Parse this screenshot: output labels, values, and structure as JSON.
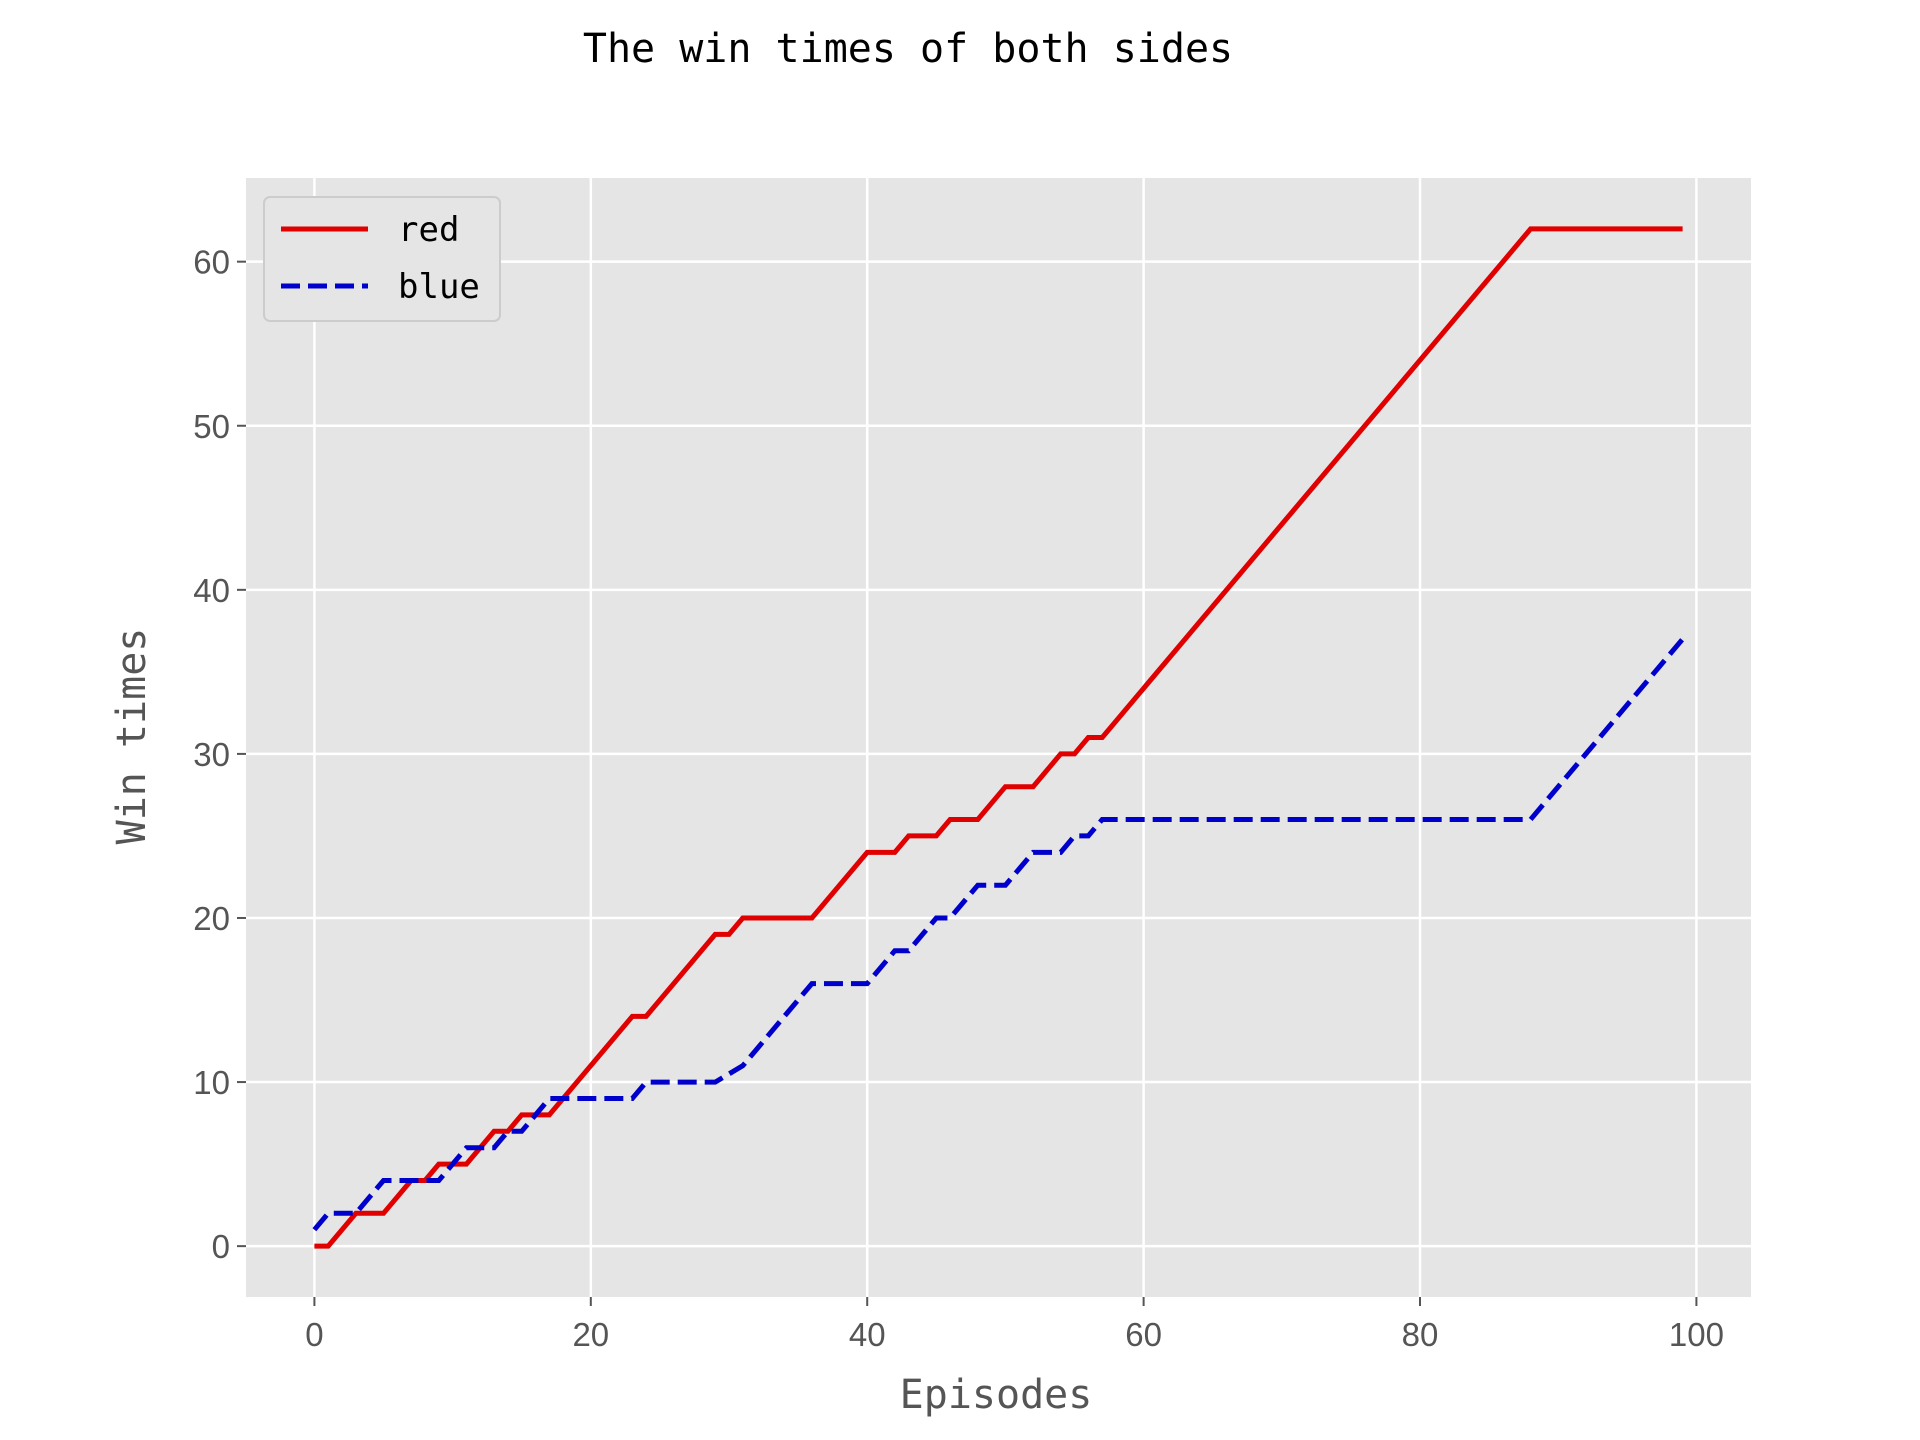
{
  "chart_data": {
    "type": "line",
    "title": "The win times of both sides",
    "xlabel": "Episodes",
    "ylabel": "Win times",
    "xlim": [
      -4.95,
      103.95
    ],
    "ylim": [
      -3.1,
      65.1
    ],
    "xticks": [
      0,
      20,
      40,
      60,
      80,
      100
    ],
    "yticks": [
      0,
      10,
      20,
      30,
      40,
      50,
      60
    ],
    "grid": true,
    "legend_position": "top-left",
    "background": "#e5e5e5",
    "series": [
      {
        "name": "red",
        "color": "#e00000",
        "style": "solid",
        "points": [
          [
            0,
            0
          ],
          [
            1,
            0
          ],
          [
            3,
            2
          ],
          [
            5,
            2
          ],
          [
            7,
            4
          ],
          [
            8,
            4
          ],
          [
            9,
            5
          ],
          [
            11,
            5
          ],
          [
            13,
            7
          ],
          [
            14,
            7
          ],
          [
            15,
            8
          ],
          [
            17,
            8
          ],
          [
            23,
            14
          ],
          [
            24,
            14
          ],
          [
            29,
            19
          ],
          [
            30,
            19
          ],
          [
            31,
            20
          ],
          [
            36,
            20
          ],
          [
            40,
            24
          ],
          [
            42,
            24
          ],
          [
            43,
            25
          ],
          [
            45,
            25
          ],
          [
            46,
            26
          ],
          [
            48,
            26
          ],
          [
            50,
            28
          ],
          [
            52,
            28
          ],
          [
            54,
            30
          ],
          [
            55,
            30
          ],
          [
            56,
            31
          ],
          [
            57,
            31
          ],
          [
            88,
            62
          ],
          [
            99,
            62
          ]
        ]
      },
      {
        "name": "blue",
        "color": "#0000cc",
        "style": "dashed",
        "points": [
          [
            0,
            1
          ],
          [
            1,
            2
          ],
          [
            3,
            2
          ],
          [
            5,
            4
          ],
          [
            8,
            4
          ],
          [
            9,
            4
          ],
          [
            11,
            6
          ],
          [
            13,
            6
          ],
          [
            14,
            7
          ],
          [
            15,
            7
          ],
          [
            17,
            9
          ],
          [
            23,
            9
          ],
          [
            24,
            10
          ],
          [
            29,
            10
          ],
          [
            31,
            11
          ],
          [
            36,
            16
          ],
          [
            40,
            16
          ],
          [
            42,
            18
          ],
          [
            43,
            18
          ],
          [
            45,
            20
          ],
          [
            46,
            20
          ],
          [
            48,
            22
          ],
          [
            50,
            22
          ],
          [
            52,
            24
          ],
          [
            54,
            24
          ],
          [
            55,
            25
          ],
          [
            56,
            25
          ],
          [
            57,
            26
          ],
          [
            88,
            26
          ],
          [
            99,
            37
          ]
        ]
      }
    ]
  }
}
